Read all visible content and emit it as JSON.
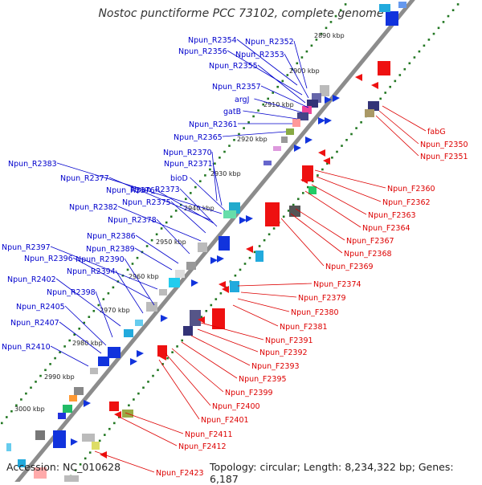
{
  "title": "Nostoc punctiforme PCC 73102, complete genome",
  "footer": {
    "accession": "Accession: NC_010628",
    "info": "Topology: circular; Length: 8,234,322 bp; Genes: 6,187"
  },
  "colors": {
    "reverse_label": "#0000cc",
    "forward_label": "#dd0000",
    "backbone": "#8c8c8c",
    "ticks": "#227722",
    "tick_label": "#222222"
  },
  "scale_labels": [
    "2890 kbp",
    "2900 kbp",
    "2910 kbp",
    "2920 kbp",
    "2930 kbp",
    "2940 kbp",
    "2950 kbp",
    "2960 kbp",
    "2970 kbp",
    "2980 kbp",
    "2990 kbp",
    "3000 kbp"
  ],
  "reverse_genes": [
    "Npun_R2354",
    "Npun_R2352",
    "Npun_R2356",
    "Npun_R2353",
    "Npun_R2355",
    "Npun_R2357",
    "argJ",
    "gatB",
    "Npun_R2361",
    "Npun_R2365",
    "Npun_R2370",
    "Npun_R2371",
    "bioD",
    "Npun_R2383",
    "Npun_R2377",
    "Npun_R2376",
    "Npun_R2373",
    "Npun_R2375",
    "Npun_R2382",
    "Npun_R2378",
    "Npun_R2386",
    "Npun_R2389",
    "Npun_R2397",
    "Npun_R2396",
    "Npun_R2390",
    "Npun_R2394",
    "Npun_R2402",
    "Npun_R2398",
    "Npun_R2405",
    "Npun_R2407",
    "Npun_R2410"
  ],
  "forward_genes": [
    "fabG",
    "Npun_F2350",
    "Npun_F2351",
    "Npun_F2360",
    "Npun_F2362",
    "Npun_F2363",
    "Npun_F2364",
    "Npun_F2367",
    "Npun_F2368",
    "Npun_F2369",
    "Npun_F2374",
    "Npun_F2379",
    "Npun_F2380",
    "Npun_F2381",
    "Npun_F2391",
    "Npun_F2392",
    "Npun_F2393",
    "Npun_F2395",
    "Npun_F2399",
    "Npun_F2400",
    "Npun_F2401",
    "Npun_F2411",
    "Npun_F2412",
    "Npun_F2423"
  ]
}
